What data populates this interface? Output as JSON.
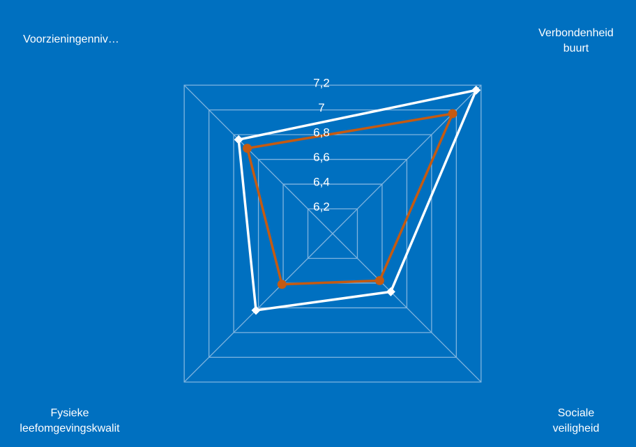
{
  "chart_data": {
    "type": "radar",
    "categories": [
      "Voorzieningenniv…",
      "Verbondenheid buurt",
      "Sociale veiligheid",
      "Fysieke leefomgevingskwalit"
    ],
    "category_lines": [
      [
        "Voorzieningenniv…"
      ],
      [
        "Verbondenheid",
        "buurt"
      ],
      [
        "Sociale",
        "veiligheid"
      ],
      [
        "Fysieke",
        "leefomgevingskwalit"
      ]
    ],
    "r_ticks": [
      "6,2",
      "6,4",
      "6,6",
      "6,8",
      "7",
      "7,2"
    ],
    "r_min": 6.0,
    "r_max": 7.2,
    "grid": true,
    "series": [
      {
        "values": [
          6.76,
          7.16,
          6.47,
          6.62
        ],
        "color": "#FFFFFF",
        "marker": "diamond"
      },
      {
        "values": [
          6.69,
          6.97,
          6.38,
          6.41
        ],
        "color": "#C55A11",
        "marker": "circle"
      }
    ],
    "background": "#0070C0",
    "gridline_color": "#7FB4DF"
  }
}
